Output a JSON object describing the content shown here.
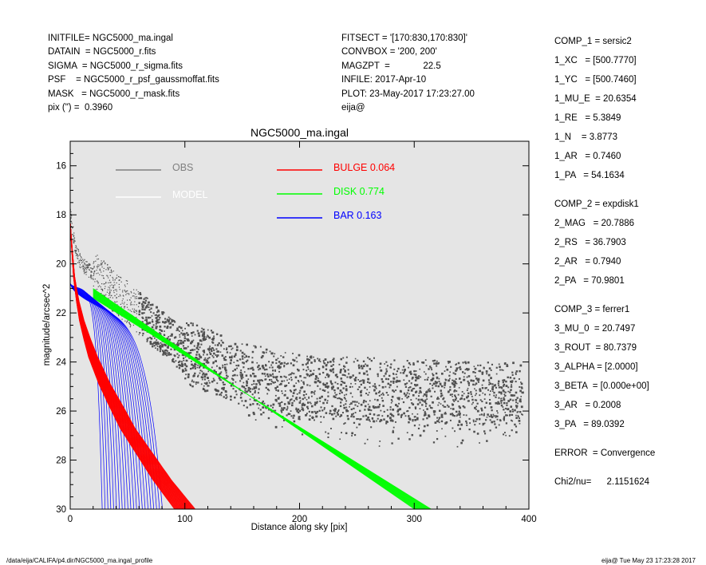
{
  "header_left": [
    "INITFILE= NGC5000_ma.ingal",
    "DATAIN  = NGC5000_r.fits",
    "SIGMA  = NGC5000_r_sigma.fits",
    "PSF    = NGC5000_r_psf_gaussmoffat.fits",
    "MASK   = NGC5000_r_mask.fits",
    "pix (\") =  0.3960"
  ],
  "header_mid": [
    "FITSECT = '[170:830,170:830]'",
    "CONVBOX = '200, 200'",
    "MAGZPT  =             22.5",
    "INFILE: 2017-Apr-10",
    "PLOT: 23-May-2017 17:23:27.00",
    "eija@"
  ],
  "right_panel": [
    "COMP_1 = sersic2",
    "1_XC   = [500.7770]",
    "1_YC   = [500.7460]",
    "1_MU_E  = 20.6354",
    "1_RE   = 5.3849",
    "1_N    = 3.8773",
    "1_AR   = 0.7460",
    "1_PA   = 54.1634",
    "COMP_2 = expdisk1",
    "2_MAG   = 20.7886",
    "2_RS   = 36.7903",
    "2_AR   = 0.7940",
    "2_PA   = 70.9801",
    "COMP_3 = ferrer1",
    "3_MU_0  = 20.7497",
    "3_ROUT  = 80.7379",
    "3_ALPHA = [2.0000]",
    "3_BETA  = [0.000e+00]",
    "3_AR   = 0.2008",
    "3_PA   = 89.0392",
    "ERROR  = Convergence",
    "Chi2/nu=      2.1151624"
  ],
  "footer_left": "/data/eija/CALIFA/p4.dir/NGC5000_ma.ingal_profile",
  "footer_right": "eija@  Tue May 23 17:23:28 2017",
  "chart_data": {
    "type": "scatter",
    "title": "NGC5000_ma.ingal",
    "xlabel": "Distance along sky [pix]",
    "ylabel": "magnitude/arcsec^2",
    "xlim": [
      0,
      400
    ],
    "ylim": [
      30,
      15
    ],
    "y_inverted": true,
    "xticks": [
      0,
      100,
      200,
      300,
      400
    ],
    "yticks": [
      16,
      18,
      20,
      22,
      24,
      26,
      28,
      30
    ],
    "background": "#e5e5e5",
    "legend": [
      {
        "label": "OBS",
        "color": "#808080"
      },
      {
        "label": "MODEL",
        "color": "#ffffff"
      },
      {
        "label": "BULGE",
        "value": "0.064",
        "color": "#ff0000"
      },
      {
        "label": "DISK",
        "value": "0.774",
        "color": "#00ff00"
      },
      {
        "label": "BAR",
        "value": "0.163",
        "color": "#0000ff"
      }
    ],
    "series": [
      {
        "name": "OBS",
        "color": "#505050",
        "points_x": [
          0,
          5,
          10,
          20,
          30,
          50,
          70,
          100,
          150,
          200,
          250,
          300,
          350,
          395
        ],
        "points_y": [
          17.9,
          19.5,
          20.0,
          20.4,
          20.8,
          21.6,
          22.4,
          23.6,
          24.5,
          25.0,
          25.1,
          25.2,
          25.3,
          25.3
        ]
      },
      {
        "name": "BULGE",
        "color": "#ff0000",
        "center_x": [
          0,
          3,
          6,
          10,
          15,
          20,
          30,
          40,
          50,
          60,
          70,
          80,
          90,
          100
        ],
        "center_y": [
          18.3,
          20.4,
          21.4,
          22.3,
          23.1,
          23.8,
          24.9,
          25.8,
          26.7,
          27.4,
          28.1,
          28.8,
          29.4,
          30.0
        ],
        "spread_x": [
          0,
          0.5,
          1,
          2,
          3,
          4,
          5,
          6,
          6.5,
          7,
          7.5,
          8,
          8.5,
          9
        ]
      },
      {
        "name": "DISK",
        "color": "#00ff00",
        "inner_x": [
          20,
          300
        ],
        "inner_y": [
          21.4,
          30.0
        ],
        "outer_x": [
          20,
          315
        ],
        "outer_y": [
          21.0,
          30.0
        ]
      },
      {
        "name": "BAR",
        "color": "#0000ff",
        "loop_count": 22,
        "x_start": 0,
        "y_start": 20.8,
        "rout": 80.7379
      }
    ]
  }
}
